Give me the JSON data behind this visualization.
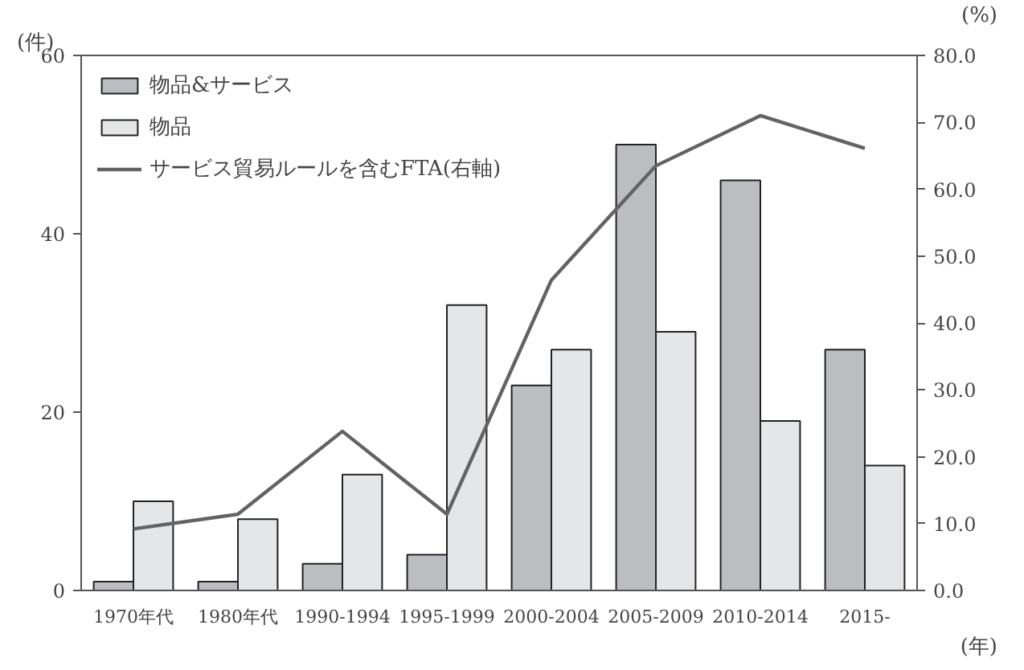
{
  "chart_data": {
    "type": "bar",
    "ylabel": "(件)",
    "y2label": "(%)",
    "xlabel": "(年)",
    "categories": [
      "1970年代",
      "1980年代",
      "1990-1994",
      "1995-1999",
      "2000-2004",
      "2005-2009",
      "2010-2014",
      "2015-"
    ],
    "series": [
      {
        "name": "物品&サービス",
        "color": "#bcbdc1",
        "values": [
          1,
          1,
          3,
          4,
          23,
          50,
          46,
          27
        ]
      },
      {
        "name": "物品",
        "color": "#e5e6e8",
        "values": [
          10,
          8,
          13,
          32,
          27,
          29,
          19,
          14
        ]
      },
      {
        "name": "サービス貿易ルールを含むFTA(右軸)",
        "type": "line",
        "axis": "y2",
        "color": "#636363",
        "values": [
          9.2,
          11.4,
          23.8,
          11.4,
          46.4,
          63.5,
          71.0,
          66.1
        ]
      }
    ],
    "ylim": [
      0,
      60
    ],
    "yticks": [
      0,
      20,
      40,
      60
    ],
    "y2lim": [
      0,
      80
    ],
    "y2ticks": [
      {
        "value": 0,
        "label": "0.0"
      },
      {
        "value": 10,
        "label": "10.0"
      },
      {
        "value": 20,
        "label": "20.0"
      },
      {
        "value": 30,
        "label": "30.0"
      },
      {
        "value": 40,
        "label": "40.0"
      },
      {
        "value": 50,
        "label": "50.0"
      },
      {
        "value": 60,
        "label": "60.0"
      },
      {
        "value": 70,
        "label": "70.0"
      },
      {
        "value": 80,
        "label": "80.0"
      }
    ],
    "grid": false,
    "legend": "top left"
  }
}
